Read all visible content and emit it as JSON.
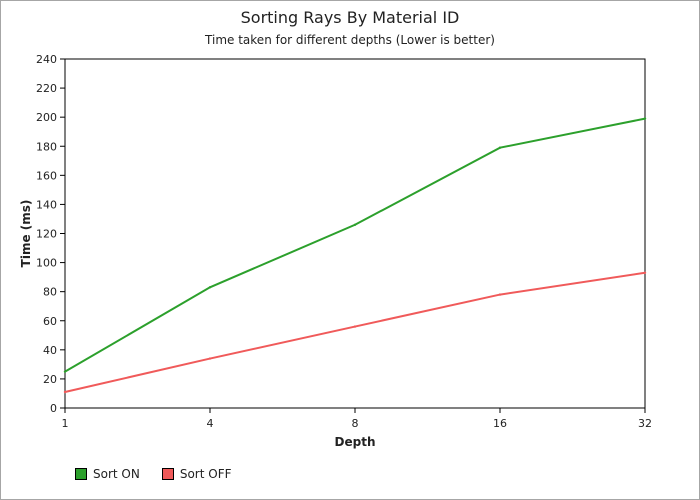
{
  "chart_data": {
    "type": "line",
    "title": "Sorting Rays By Material ID",
    "subtitle": "Time taken for different depths (Lower is better)",
    "xlabel": "Depth",
    "ylabel": "Time (ms)",
    "categories": [
      "1",
      "4",
      "8",
      "16",
      "32"
    ],
    "ylim": [
      0,
      240
    ],
    "yticks": [
      0,
      20,
      40,
      60,
      80,
      100,
      120,
      140,
      160,
      180,
      200,
      220,
      240
    ],
    "grid": false,
    "legend_position": "bottom-left",
    "series": [
      {
        "name": "Sort ON",
        "color": "#2ca02c",
        "values": [
          25,
          83,
          126,
          179,
          199
        ]
      },
      {
        "name": "Sort OFF",
        "color": "#f05a5a",
        "values": [
          11,
          34,
          56,
          78,
          93
        ]
      }
    ]
  }
}
